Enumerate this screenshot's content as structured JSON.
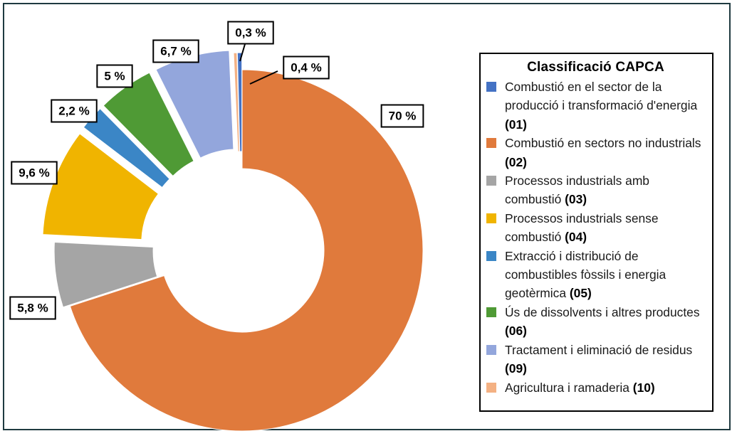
{
  "chart_data": {
    "type": "pie",
    "style": "donut",
    "legend_title": "Classificació CAPCA",
    "legend_position": "right",
    "slices": [
      {
        "label": "Combustió en el sector de la producció i transformació d'energia",
        "code": "(01)",
        "value": 0.4,
        "value_label": "0,4 %",
        "color": "#4472c4"
      },
      {
        "label": "Combustió en sectors no industrials",
        "code": "(02)",
        "value": 70,
        "value_label": "70 %",
        "color": "#e07a3c"
      },
      {
        "label": "Processos industrials amb combustió",
        "code": "(03)",
        "value": 5.8,
        "value_label": "5,8 %",
        "color": "#a5a5a5"
      },
      {
        "label": "Processos industrials sense combustió",
        "code": "(04)",
        "value": 9.6,
        "value_label": "9,6 %",
        "color": "#f0b400"
      },
      {
        "label": "Extracció i distribució de combustibles fòssils i energia geotèrmica",
        "code": "(05)",
        "value": 2.2,
        "value_label": "2,2 %",
        "color": "#3b86c6"
      },
      {
        "label": "Ús de dissolvents i altres productes",
        "code": "(06)",
        "value": 5,
        "value_label": "5 %",
        "color": "#4f9a35"
      },
      {
        "label": "Tractament i eliminació de residus",
        "code": "(09)",
        "value": 6.7,
        "value_label": "6,7 %",
        "color": "#93a6dc"
      },
      {
        "label": "Agricultura i ramaderia",
        "code": "(10)",
        "value": 0.3,
        "value_label": "0,3 %",
        "color": "#f4b183"
      }
    ]
  }
}
